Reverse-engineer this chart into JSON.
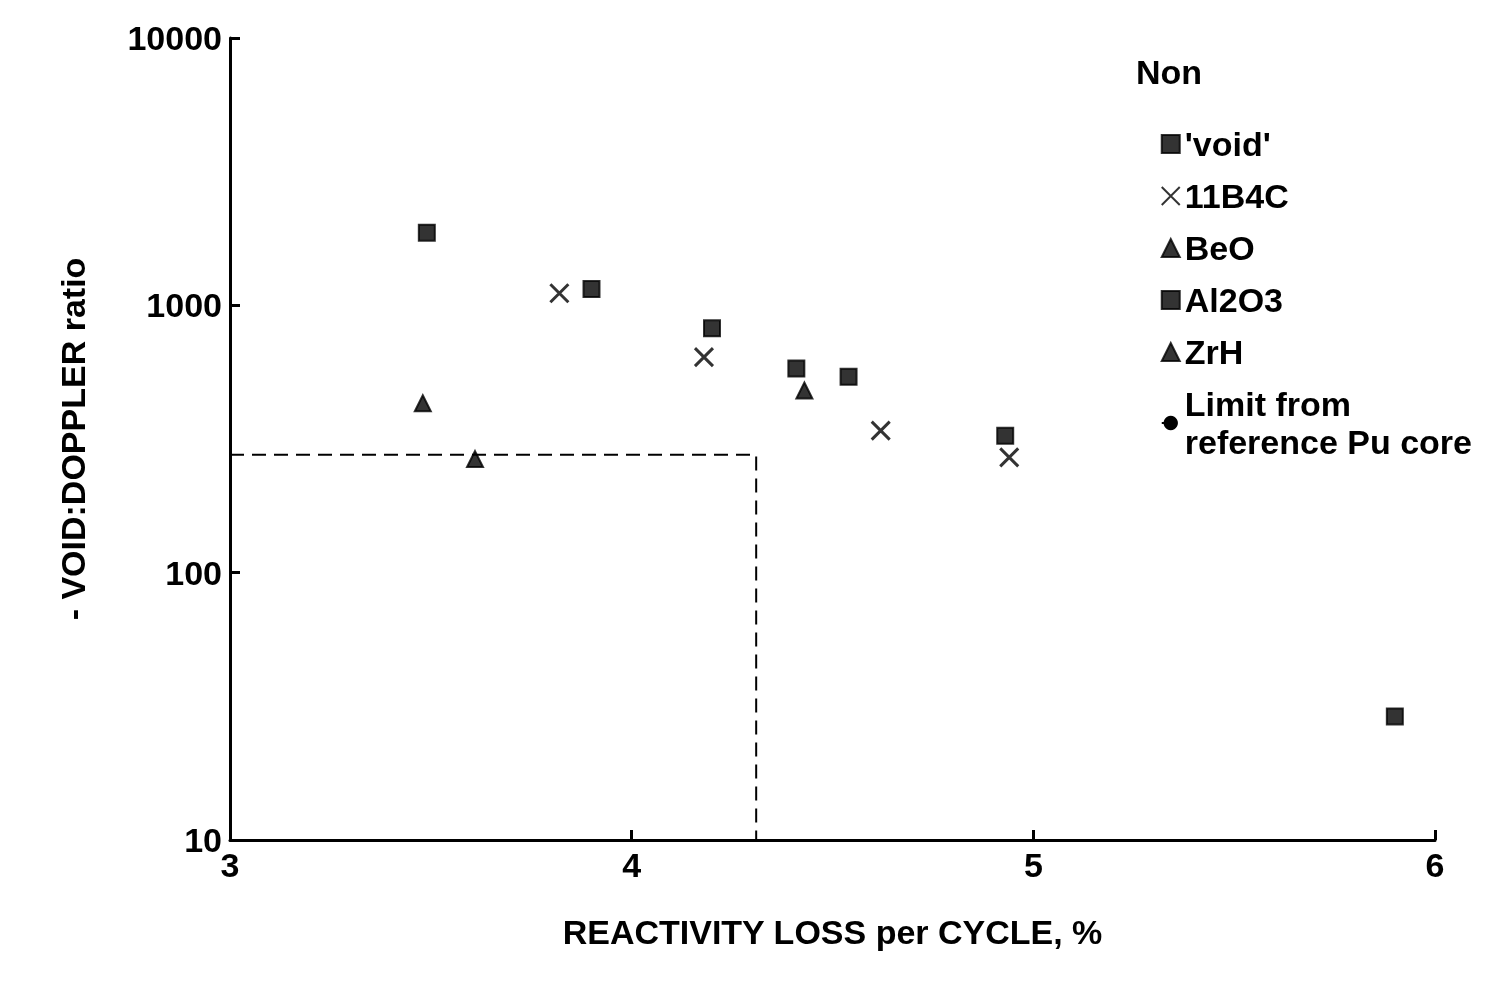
{
  "chart_data": {
    "type": "scatter",
    "xlabel": "REACTIVITY LOSS per CYCLE, %",
    "ylabel": "- VOID:DOPPLER ratio",
    "legend_title": "Non",
    "log": "y",
    "grid": false,
    "legend": "top right",
    "xlim": [
      3,
      6
    ],
    "xticks": [
      3,
      4,
      5,
      6
    ],
    "ylim": [
      10,
      10000
    ],
    "yticks": [
      10,
      100,
      1000,
      10000
    ],
    "series": [
      {
        "name": "'void'",
        "color": "#000000",
        "marker": "square",
        "x": [
          3.49,
          3.9,
          4.2,
          4.54,
          4.93,
          5.9
        ],
        "values": [
          1870,
          1150,
          820,
          540,
          325,
          29
        ]
      },
      {
        "name": "11B4C",
        "color": "#000000",
        "marker": "cross",
        "x": [
          3.82,
          4.18,
          4.62,
          4.94
        ],
        "values": [
          1110,
          640,
          340,
          270
        ]
      },
      {
        "name": "BeO",
        "color": "#000000",
        "marker": "triangle",
        "x": [
          4.43
        ],
        "values": [
          480
        ]
      },
      {
        "name": "Al2O3",
        "color": "#000000",
        "marker": "square",
        "x": [
          4.41
        ],
        "values": [
          580
        ]
      },
      {
        "name": "ZrH",
        "color": "#000000",
        "marker": "triangle",
        "x": [
          3.48,
          3.61
        ],
        "values": [
          430,
          266
        ]
      },
      {
        "name": "Limit from\nreference Pu core",
        "type": "line",
        "color": "#000000",
        "marker": "none",
        "line_style": "dashed",
        "x": [
          3,
          4.31,
          4.31
        ],
        "values": [
          276,
          276,
          10
        ]
      }
    ]
  }
}
